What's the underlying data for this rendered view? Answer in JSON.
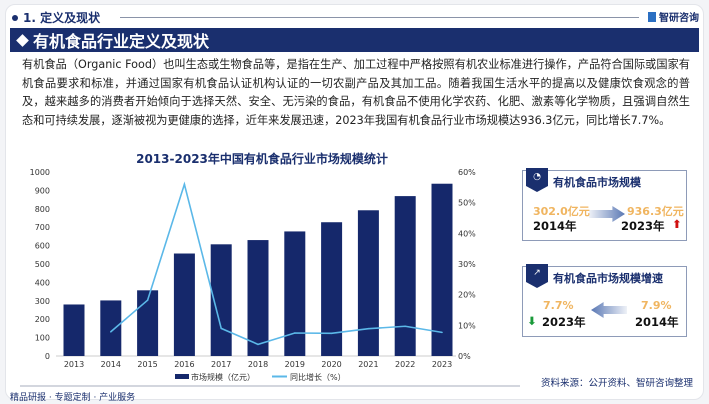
{
  "section": {
    "title": "1. 定义及现状",
    "logo": "智研咨询"
  },
  "banner": {
    "title": "有机食品行业定义及现状"
  },
  "paragraph": "有机食品（Organic Food）也叫生态或生物食品等，是指在生产、加工过程中严格按照有机农业标准进行操作，产品符合国际或国家有机食品要求和标准，并通过国家有机食品认证机构认证的一切农副产品及其加工品。随着我国生活水平的提高以及健康饮食观念的普及，越来越多的消费者开始倾向于选择天然、安全、无污染的食品，有机食品不使用化学农药、化肥、激素等化学物质，且强调自然生态和可持续发展，逐渐被视为更健康的选择，近年来发展迅速，2023年我国有机食品行业市场规模达936.3亿元，同比增长7.7%。",
  "chart_data": {
    "type": "bar+line",
    "title": "2013-2023年中国有机食品行业市场规模统计",
    "categories": [
      "2013",
      "2014",
      "2015",
      "2016",
      "2017",
      "2018",
      "2019",
      "2020",
      "2021",
      "2022",
      "2023"
    ],
    "series": [
      {
        "name": "市场规模（亿元）",
        "type": "bar",
        "axis": "left",
        "color": "#15286b",
        "values": [
          280,
          302,
          357,
          557,
          607,
          630,
          677,
          727,
          792,
          869,
          936.3
        ]
      },
      {
        "name": "同比增长（%）",
        "type": "line",
        "axis": "right",
        "color": "#5bb8e8",
        "values": [
          null,
          7.9,
          18.2,
          56,
          9.0,
          3.8,
          7.5,
          7.4,
          8.9,
          9.7,
          7.7
        ]
      }
    ],
    "ylim_left": [
      0,
      1000
    ],
    "yticks_left": [
      "0",
      "100",
      "200",
      "300",
      "400",
      "500",
      "600",
      "700",
      "800",
      "900",
      "1000"
    ],
    "ylim_right": [
      0,
      60
    ],
    "yticks_right": [
      "0%",
      "10%",
      "20%",
      "30%",
      "40%",
      "50%",
      "60%"
    ],
    "legend": "bottom",
    "grid": false
  },
  "box1": {
    "title": "有机食品市场规模",
    "from_value": "302.0亿元",
    "from_year": "2014年",
    "to_value": "936.3亿元",
    "to_year": "2023年",
    "trend": "up"
  },
  "box2": {
    "title": "有机食品市场规模增速",
    "from_value": "7.9%",
    "from_year": "2014年",
    "to_value": "7.7%",
    "to_year": "2023年",
    "trend": "down"
  },
  "source": "资料来源：公开资料、智研咨询整理",
  "footer": "精品研报 · 专题定制 · 产业服务"
}
